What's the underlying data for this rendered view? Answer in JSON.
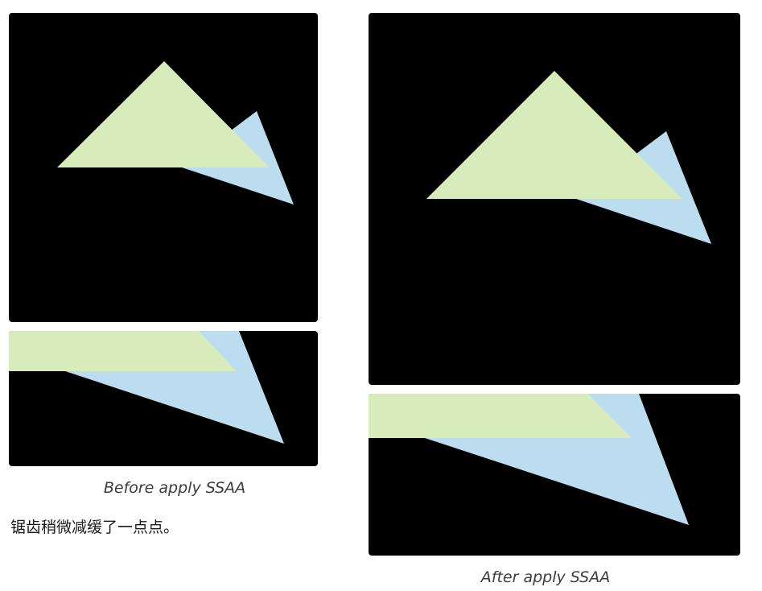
{
  "colors": {
    "background": "#000000",
    "triangle_green": "#d8ecbb",
    "triangle_blue": "#bcdcef"
  },
  "figures": {
    "before": {
      "caption": "Before apply SSAA",
      "panels": [
        "full-render",
        "zoomed-edge"
      ]
    },
    "after": {
      "caption": "After apply SSAA",
      "panels": [
        "full-render",
        "zoomed-edge"
      ]
    }
  },
  "note": "锯齿稍微减缓了一点点。"
}
